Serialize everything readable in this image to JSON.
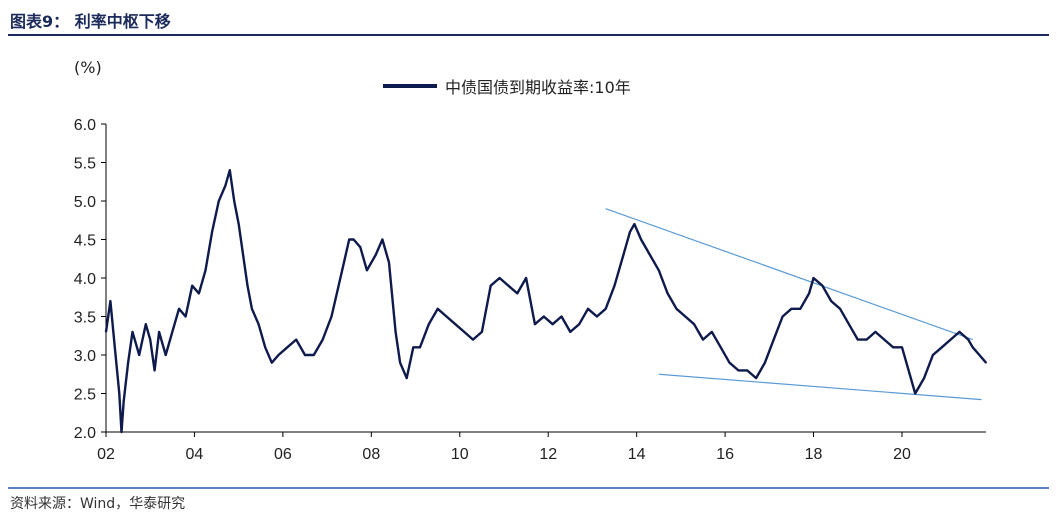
{
  "header": {
    "title": "图表9：  利率中枢下移"
  },
  "footer": {
    "source": "资料来源：Wind，华泰研究"
  },
  "colors": {
    "series": "#0e1a4b",
    "trendline": "#5b9bd5",
    "rule": "#1b2a5a"
  },
  "chart_data": {
    "type": "line",
    "title": "",
    "unit_label": "(%)",
    "xlabel": "",
    "ylabel": "",
    "xlim": [
      2002.0,
      2021.9
    ],
    "ylim": [
      2.0,
      6.0
    ],
    "yticks": [
      "6.0",
      "5.5",
      "5.0",
      "4.5",
      "4.0",
      "3.5",
      "3.0",
      "2.5",
      "2.0"
    ],
    "ytick_values": [
      6.0,
      5.5,
      5.0,
      4.5,
      4.0,
      3.5,
      3.0,
      2.5,
      2.0
    ],
    "xticks": [
      "02",
      "04",
      "06",
      "08",
      "10",
      "12",
      "14",
      "16",
      "18",
      "20"
    ],
    "xtick_values": [
      2002,
      2004,
      2006,
      2008,
      2010,
      2012,
      2014,
      2016,
      2018,
      2020
    ],
    "grid": false,
    "legend": "top-center",
    "series": [
      {
        "name": "中债国债到期收益率:10年",
        "x": [
          2002.0,
          2002.1,
          2002.2,
          2002.3,
          2002.35,
          2002.4,
          2002.5,
          2002.6,
          2002.75,
          2002.9,
          2003.0,
          2003.1,
          2003.2,
          2003.35,
          2003.5,
          2003.65,
          2003.8,
          2003.95,
          2004.1,
          2004.25,
          2004.4,
          2004.55,
          2004.7,
          2004.8,
          2004.9,
          2005.0,
          2005.1,
          2005.2,
          2005.3,
          2005.45,
          2005.6,
          2005.75,
          2005.9,
          2006.1,
          2006.3,
          2006.5,
          2006.7,
          2006.9,
          2007.1,
          2007.3,
          2007.5,
          2007.6,
          2007.75,
          2007.9,
          2008.1,
          2008.25,
          2008.4,
          2008.55,
          2008.65,
          2008.8,
          2008.95,
          2009.1,
          2009.3,
          2009.5,
          2009.7,
          2009.9,
          2010.1,
          2010.3,
          2010.5,
          2010.7,
          2010.9,
          2011.1,
          2011.3,
          2011.5,
          2011.7,
          2011.9,
          2012.1,
          2012.3,
          2012.5,
          2012.7,
          2012.9,
          2013.1,
          2013.3,
          2013.5,
          2013.7,
          2013.85,
          2013.95,
          2014.1,
          2014.3,
          2014.5,
          2014.7,
          2014.9,
          2015.1,
          2015.3,
          2015.5,
          2015.7,
          2015.9,
          2016.1,
          2016.3,
          2016.5,
          2016.7,
          2016.9,
          2017.1,
          2017.3,
          2017.5,
          2017.7,
          2017.9,
          2018.0,
          2018.2,
          2018.4,
          2018.6,
          2018.8,
          2019.0,
          2019.2,
          2019.4,
          2019.6,
          2019.8,
          2020.0,
          2020.2,
          2020.3,
          2020.5,
          2020.7,
          2020.9,
          2021.1,
          2021.3,
          2021.5,
          2021.6,
          2021.75,
          2021.9
        ],
        "values": [
          3.3,
          3.7,
          3.1,
          2.5,
          2.0,
          2.4,
          2.9,
          3.3,
          3.0,
          3.4,
          3.2,
          2.8,
          3.3,
          3.0,
          3.3,
          3.6,
          3.5,
          3.9,
          3.8,
          4.1,
          4.6,
          5.0,
          5.2,
          5.4,
          5.0,
          4.7,
          4.3,
          3.9,
          3.6,
          3.4,
          3.1,
          2.9,
          3.0,
          3.1,
          3.2,
          3.0,
          3.0,
          3.2,
          3.5,
          4.0,
          4.5,
          4.5,
          4.4,
          4.1,
          4.3,
          4.5,
          4.2,
          3.3,
          2.9,
          2.7,
          3.1,
          3.1,
          3.4,
          3.6,
          3.5,
          3.4,
          3.3,
          3.2,
          3.3,
          3.9,
          4.0,
          3.9,
          3.8,
          4.0,
          3.4,
          3.5,
          3.4,
          3.5,
          3.3,
          3.4,
          3.6,
          3.5,
          3.6,
          3.9,
          4.3,
          4.6,
          4.7,
          4.5,
          4.3,
          4.1,
          3.8,
          3.6,
          3.5,
          3.4,
          3.2,
          3.3,
          3.1,
          2.9,
          2.8,
          2.8,
          2.7,
          2.9,
          3.2,
          3.5,
          3.6,
          3.6,
          3.8,
          4.0,
          3.9,
          3.7,
          3.6,
          3.4,
          3.2,
          3.2,
          3.3,
          3.2,
          3.1,
          3.1,
          2.7,
          2.5,
          2.7,
          3.0,
          3.1,
          3.2,
          3.3,
          3.2,
          3.1,
          3.0,
          2.9
        ]
      }
    ],
    "trendlines": [
      {
        "name": "",
        "x": [
          2013.3,
          2021.6
        ],
        "values": [
          4.9,
          3.2
        ]
      },
      {
        "name": "",
        "x": [
          2014.5,
          2021.8
        ],
        "values": [
          2.75,
          2.42
        ]
      }
    ]
  }
}
